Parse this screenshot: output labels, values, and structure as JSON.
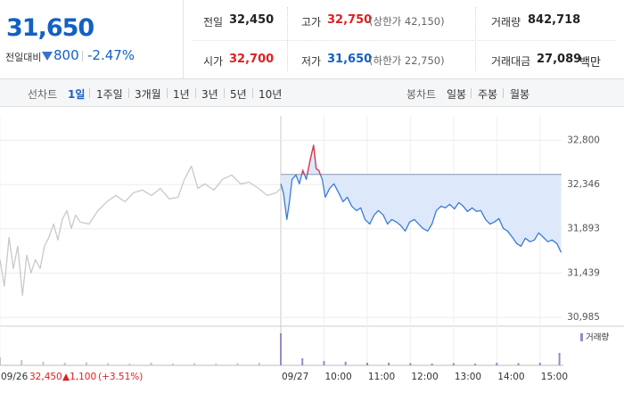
{
  "header": {
    "price": "31,650",
    "change_label": "전일대비",
    "change": "800",
    "change_rate": "-2.47%"
  },
  "summary": [
    {
      "label": "전일",
      "value": "32,450"
    },
    {
      "label": "고가",
      "value": "32,750",
      "note": "(상한가 42,150)"
    },
    {
      "label": "거래량",
      "value": "842,718"
    },
    {
      "label": "시가",
      "value": "32,700"
    },
    {
      "label": "저가",
      "value": "31,650",
      "note": "(하한가 22,750)"
    },
    {
      "label": "거래대금",
      "value": "27,089",
      "unit": "백만"
    }
  ],
  "tabs": {
    "line_label": "선차트",
    "line": [
      "1일",
      "1주일",
      "3개월",
      "1년",
      "3년",
      "5년",
      "10년"
    ],
    "candle_label": "봉차트",
    "candle": [
      "일봉",
      "주봉",
      "월봉"
    ]
  },
  "chart_data": {
    "type": "line",
    "xlim": [
      0,
      13
    ],
    "xticks": [
      {
        "value": 0,
        "label": "09/26"
      },
      {
        "value": 6.5,
        "label": "09/27"
      },
      {
        "value": 7.5,
        "label": "10:00"
      },
      {
        "value": 8.5,
        "label": "11:00"
      },
      {
        "value": 9.5,
        "label": "12:00"
      },
      {
        "value": 10.5,
        "label": "13:00"
      },
      {
        "value": 11.5,
        "label": "14:00"
      },
      {
        "value": 12.5,
        "label": "15:00"
      }
    ],
    "ylim": [
      30950,
      33050
    ],
    "yticks": [
      {
        "value": 30985,
        "label": "30,985"
      },
      {
        "value": 31439,
        "label": "31,439"
      },
      {
        "value": 31893,
        "label": "31,893"
      },
      {
        "value": 32346,
        "label": "32,346"
      },
      {
        "value": 32800,
        "label": "32,800"
      }
    ],
    "grid": true,
    "base": 32450,
    "series": [
      {
        "color": "#c9c9c9",
        "x": [
          0,
          0.1,
          0.21,
          0.31,
          0.41,
          0.52,
          0.62,
          0.72,
          0.82,
          0.93,
          1.03,
          1.13,
          1.24,
          1.34,
          1.44,
          1.55,
          1.65,
          1.75,
          1.86,
          2.06,
          2.27,
          2.47,
          2.68,
          2.89,
          3.09,
          3.3,
          3.51,
          3.71,
          3.92,
          4.12,
          4.27,
          4.43,
          4.58,
          4.74,
          4.95,
          5.15,
          5.36,
          5.57,
          5.77,
          5.98,
          6.19,
          6.39,
          6.5
        ],
        "values": [
          31577,
          31304,
          31805,
          31486,
          31714,
          31212,
          31623,
          31441,
          31577,
          31486,
          31714,
          31805,
          31942,
          31778,
          31988,
          32079,
          31897,
          32034,
          31961,
          31942,
          32079,
          32170,
          32234,
          32170,
          32262,
          32289,
          32234,
          32307,
          32198,
          32216,
          32399,
          32535,
          32307,
          32353,
          32289,
          32399,
          32444,
          32353,
          32371,
          32307,
          32234,
          32262,
          32307
        ]
      },
      {
        "color": "#3b7ad6",
        "up_color": "#e8383d",
        "fill": "#dde9fb",
        "x": [
          6.5,
          6.56,
          6.64,
          6.7,
          6.76,
          6.85,
          6.93,
          7.01,
          7.09,
          7.18,
          7.26,
          7.32,
          7.38,
          7.46,
          7.53,
          7.63,
          7.73,
          7.84,
          7.94,
          8.04,
          8.14,
          8.25,
          8.35,
          8.45,
          8.56,
          8.66,
          8.76,
          8.87,
          8.97,
          9.07,
          9.18,
          9.28,
          9.38,
          9.48,
          9.59,
          9.69,
          9.79,
          9.9,
          10,
          10.1,
          10.21,
          10.31,
          10.41,
          10.52,
          10.62,
          10.72,
          10.82,
          10.93,
          11.03,
          11.13,
          11.24,
          11.34,
          11.44,
          11.55,
          11.65,
          11.75,
          11.86,
          11.96,
          12.06,
          12.16,
          12.27,
          12.37,
          12.47,
          12.58,
          12.68,
          12.78,
          12.89,
          12.99
        ],
        "values": [
          32353,
          32262,
          31988,
          32170,
          32399,
          32444,
          32353,
          32490,
          32399,
          32600,
          32750,
          32508,
          32490,
          32399,
          32216,
          32307,
          32353,
          32262,
          32170,
          32216,
          32125,
          32079,
          32107,
          31988,
          31942,
          32034,
          32079,
          32034,
          31942,
          31988,
          31961,
          31924,
          31869,
          31961,
          31988,
          31942,
          31897,
          31869,
          31942,
          32079,
          32125,
          32107,
          32143,
          32097,
          32161,
          32125,
          32070,
          32107,
          32070,
          32079,
          31988,
          31942,
          31961,
          31997,
          31897,
          31869,
          31805,
          31742,
          31714,
          31796,
          31760,
          31778,
          31851,
          31805,
          31760,
          31778,
          31742,
          31650
        ]
      }
    ],
    "volume": {
      "name": "거래량",
      "ylim": [
        0,
        40000
      ],
      "series": [
        {
          "color": "#c4c4c4",
          "x": [
            0,
            0.5,
            1,
            1.5,
            2,
            2.5,
            3,
            3.5,
            4,
            4.5,
            5,
            5.5,
            6
          ],
          "values": [
            9000,
            6000,
            4000,
            3000,
            3500,
            2500,
            2000,
            3000,
            2000,
            2500,
            2000,
            2500,
            3000
          ]
        },
        {
          "color": "#9b87c9",
          "x": [
            6.5,
            7,
            7.5,
            8,
            8.5,
            9,
            9.5,
            10,
            10.5,
            11,
            11.5,
            12,
            12.5,
            12.95
          ],
          "values": [
            36000,
            8000,
            5000,
            4000,
            3000,
            3000,
            2500,
            2000,
            2500,
            2000,
            3000,
            2500,
            3000,
            14000
          ]
        }
      ]
    },
    "info": {
      "price": "32,450",
      "change": "▲1,100",
      "rate": "(+3.51%)"
    }
  }
}
